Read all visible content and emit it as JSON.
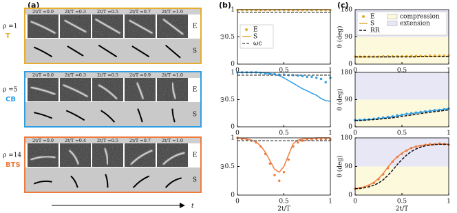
{
  "panel_labels": [
    "(a)",
    "(b)",
    "(c)"
  ],
  "panel_a": {
    "time_label": "t",
    "rows": [
      {
        "rho": "ρ =1",
        "name": "T",
        "color": "#e6ad2e",
        "times": [
          "2t/T =0.0",
          "2t/T =0.3",
          "2t/T =0.5",
          "2t/T =0.7",
          "2t/T =1.0"
        ],
        "row_labels": [
          "E",
          "S"
        ]
      },
      {
        "rho": "ρ =5",
        "name": "CB",
        "color": "#2f9ee3",
        "times": [
          "2t/T =0.0",
          "2t/T =0.3",
          "2t/T =0.5",
          "2t/T =0.9",
          "2t/T =1.0"
        ],
        "row_labels": [
          "E",
          "S"
        ]
      },
      {
        "rho": "ρ =14",
        "name": "BTS",
        "color": "#ef7b3c",
        "times": [
          "2t/T =0.0",
          "2t/T =0.4",
          "2t/T =0.5",
          "2t/T =0.7",
          "2t/T =1.0"
        ],
        "row_labels": [
          "E",
          "S"
        ]
      }
    ]
  },
  "chart_data": [
    {
      "type": "line",
      "ylabel": "ω",
      "xlim": [
        0,
        1
      ],
      "ylim": [
        0,
        1
      ],
      "xticks": [
        0,
        0.5,
        1
      ],
      "yticks": [
        0,
        0.5,
        1
      ],
      "legend": "center left",
      "x": [
        0,
        0.05,
        0.1,
        0.15,
        0.2,
        0.25,
        0.3,
        0.35,
        0.4,
        0.45,
        0.5,
        0.55,
        0.6,
        0.65,
        0.7,
        0.75,
        0.8,
        0.85,
        0.9,
        0.95,
        1
      ],
      "series": [
        {
          "name": "E",
          "color": "#e6ad2e",
          "style": "markers",
          "values": [
            0.99,
            0.99,
            0.99,
            0.99,
            0.99,
            0.99,
            0.99,
            0.99,
            0.99,
            0.99,
            0.99,
            0.99,
            0.99,
            0.99,
            0.99,
            0.99,
            0.99,
            0.99,
            0.99,
            0.99,
            0.99
          ]
        },
        {
          "name": "S",
          "color": "#e6ad2e",
          "style": "solid",
          "x": [
            0,
            1
          ],
          "values": [
            1,
            1
          ]
        },
        {
          "name": "ωc",
          "color": "#666666",
          "style": "dashed",
          "x": [
            0,
            1
          ],
          "values": [
            0.95,
            0.95
          ]
        }
      ]
    },
    {
      "type": "line",
      "ylabel": "ω",
      "xlim": [
        0,
        1
      ],
      "ylim": [
        0,
        1
      ],
      "xticks": [
        0,
        0.5,
        1
      ],
      "yticks": [
        0,
        0.5,
        1
      ],
      "x": [
        0,
        0.05,
        0.1,
        0.15,
        0.2,
        0.25,
        0.3,
        0.35,
        0.4,
        0.45,
        0.5,
        0.55,
        0.6,
        0.65,
        0.7,
        0.75,
        0.8,
        0.85,
        0.9,
        0.95,
        1
      ],
      "series": [
        {
          "name": "E",
          "color": "#2f9ee3",
          "style": "markers",
          "values": [
            1,
            1,
            1,
            1,
            1,
            0.99,
            0.98,
            0.97,
            0.97,
            0.96,
            0.96,
            0.95,
            0.95,
            0.94,
            0.93,
            0.92,
            0.92,
            0.9,
            0.88,
            0.82,
            0.9
          ]
        },
        {
          "name": "S",
          "color": "#2f9ee3",
          "style": "solid",
          "values": [
            1,
            1,
            1,
            1,
            1,
            1,
            0.99,
            0.98,
            0.96,
            0.94,
            0.9,
            0.85,
            0.8,
            0.75,
            0.7,
            0.66,
            0.62,
            0.58,
            0.52,
            0.48,
            0.47
          ]
        },
        {
          "name": "ωc",
          "color": "#666666",
          "style": "dashed",
          "x": [
            0,
            1
          ],
          "values": [
            0.95,
            0.95
          ]
        }
      ]
    },
    {
      "type": "line",
      "ylabel": "ω",
      "xlabel": "2t/T",
      "xlim": [
        0,
        1
      ],
      "ylim": [
        0,
        1
      ],
      "xticks": [
        0,
        0.5,
        1
      ],
      "yticks": [
        0,
        0.5,
        1
      ],
      "x": [
        0,
        0.05,
        0.1,
        0.15,
        0.2,
        0.25,
        0.3,
        0.35,
        0.4,
        0.45,
        0.5,
        0.55,
        0.6,
        0.65,
        0.7,
        0.75,
        0.8,
        0.85,
        0.9,
        0.95,
        1
      ],
      "series": [
        {
          "name": "E",
          "color": "#ef7b3c",
          "style": "markers",
          "values": [
            1,
            0.98,
            0.97,
            0.95,
            0.92,
            0.85,
            0.72,
            0.55,
            0.35,
            0.25,
            0.4,
            0.62,
            0.85,
            0.92,
            0.95,
            0.97,
            0.97,
            0.98,
            0.97,
            0.98,
            0.97
          ]
        },
        {
          "name": "S",
          "color": "#ef7b3c",
          "style": "solid",
          "values": [
            1,
            0.99,
            0.98,
            0.96,
            0.93,
            0.86,
            0.75,
            0.6,
            0.45,
            0.4,
            0.5,
            0.7,
            0.9,
            0.96,
            0.98,
            0.99,
            0.99,
            1,
            1,
            1,
            1
          ]
        },
        {
          "name": "ωc",
          "color": "#666666",
          "style": "dashed",
          "x": [
            0,
            1
          ],
          "values": [
            0.95,
            0.95
          ]
        }
      ]
    },
    {
      "type": "line",
      "ylabel": "θ (deg)",
      "xlim": [
        0,
        1
      ],
      "ylim": [
        0,
        180
      ],
      "xticks": [
        0,
        0.5,
        1
      ],
      "yticks": [
        0,
        90,
        180
      ],
      "legend": "top",
      "regions": [
        {
          "name": "compression",
          "range": [
            0,
            90
          ],
          "color": "#fcf9dd"
        },
        {
          "name": "extension",
          "range": [
            90,
            180
          ],
          "color": "#e8e7f5"
        }
      ],
      "x": [
        0,
        0.05,
        0.1,
        0.15,
        0.2,
        0.25,
        0.3,
        0.35,
        0.4,
        0.45,
        0.5,
        0.55,
        0.6,
        0.65,
        0.7,
        0.75,
        0.8,
        0.85,
        0.9,
        0.95,
        1
      ],
      "series": [
        {
          "name": "E",
          "color": "#e6ad2e",
          "style": "markers",
          "values": [
            25,
            25,
            25,
            25,
            25,
            25,
            26,
            26,
            26,
            26,
            26,
            26,
            27,
            27,
            27,
            27,
            28,
            28,
            28,
            28,
            28
          ]
        },
        {
          "name": "S",
          "color": "#e6ad2e",
          "style": "solid",
          "values": [
            24,
            24,
            24,
            24,
            24,
            24,
            24,
            24,
            25,
            25,
            25,
            25,
            25,
            25,
            25,
            25,
            25,
            26,
            26,
            26,
            26
          ]
        },
        {
          "name": "RR",
          "color": "#111111",
          "style": "dashed",
          "values": [
            24,
            24,
            24,
            24,
            24,
            24,
            24,
            24,
            24,
            24,
            24,
            24,
            24,
            24,
            25,
            25,
            25,
            25,
            25,
            25,
            25
          ]
        }
      ]
    },
    {
      "type": "line",
      "ylabel": "θ (deg)",
      "xlim": [
        0,
        1
      ],
      "ylim": [
        0,
        180
      ],
      "xticks": [
        0,
        0.5,
        1
      ],
      "yticks": [
        0,
        90,
        180
      ],
      "regions": [
        {
          "name": "compression",
          "range": [
            0,
            90
          ],
          "color": "#fcf9dd"
        },
        {
          "name": "extension",
          "range": [
            90,
            180
          ],
          "color": "#e8e7f5"
        }
      ],
      "x": [
        0,
        0.05,
        0.1,
        0.15,
        0.2,
        0.25,
        0.3,
        0.35,
        0.4,
        0.45,
        0.5,
        0.55,
        0.6,
        0.65,
        0.7,
        0.75,
        0.8,
        0.85,
        0.9,
        0.95,
        1
      ],
      "series": [
        {
          "name": "E",
          "color": "#2f9ee3",
          "style": "markers",
          "values": [
            22,
            23,
            24,
            25,
            27,
            29,
            31,
            33,
            35,
            38,
            40,
            43,
            45,
            47,
            49,
            51,
            53,
            55,
            56,
            58,
            60
          ]
        },
        {
          "name": "S",
          "color": "#2f9ee3",
          "style": "solid",
          "values": [
            22,
            22,
            23,
            24,
            25,
            27,
            29,
            31,
            33,
            36,
            39,
            42,
            44,
            46,
            48,
            50,
            52,
            54,
            56,
            58,
            60
          ]
        },
        {
          "name": "RR",
          "color": "#111111",
          "style": "dashed",
          "values": [
            21,
            21,
            22,
            23,
            24,
            25,
            27,
            28,
            30,
            32,
            34,
            37,
            39,
            41,
            44,
            46,
            48,
            50,
            52,
            54,
            56
          ]
        }
      ]
    },
    {
      "type": "line",
      "ylabel": "θ (deg)",
      "xlabel": "2t/T",
      "xlim": [
        0,
        1
      ],
      "ylim": [
        0,
        180
      ],
      "xticks": [
        0,
        0.5,
        1
      ],
      "yticks": [
        0,
        90,
        180
      ],
      "regions": [
        {
          "name": "compression",
          "range": [
            0,
            90
          ],
          "color": "#fcf9dd"
        },
        {
          "name": "extension",
          "range": [
            90,
            180
          ],
          "color": "#e8e7f5"
        }
      ],
      "x": [
        0,
        0.05,
        0.1,
        0.15,
        0.2,
        0.25,
        0.3,
        0.35,
        0.4,
        0.45,
        0.5,
        0.55,
        0.6,
        0.65,
        0.7,
        0.75,
        0.8,
        0.85,
        0.9,
        0.95,
        1
      ],
      "series": [
        {
          "name": "E",
          "color": "#ef7b3c",
          "style": "markers",
          "values": [
            20,
            22,
            25,
            30,
            38,
            50,
            65,
            85,
            105,
            120,
            130,
            140,
            148,
            152,
            155,
            158,
            160,
            160,
            162,
            160,
            158
          ]
        },
        {
          "name": "S",
          "color": "#ef7b3c",
          "style": "solid",
          "values": [
            20,
            22,
            26,
            32,
            40,
            52,
            68,
            88,
            106,
            120,
            132,
            141,
            148,
            153,
            156,
            158,
            159,
            160,
            160,
            160,
            160
          ]
        },
        {
          "name": "RR",
          "color": "#111111",
          "style": "dashed",
          "values": [
            20,
            21,
            23,
            26,
            31,
            38,
            48,
            62,
            78,
            96,
            112,
            126,
            137,
            145,
            151,
            155,
            157,
            159,
            160,
            160,
            160
          ]
        }
      ]
    }
  ]
}
